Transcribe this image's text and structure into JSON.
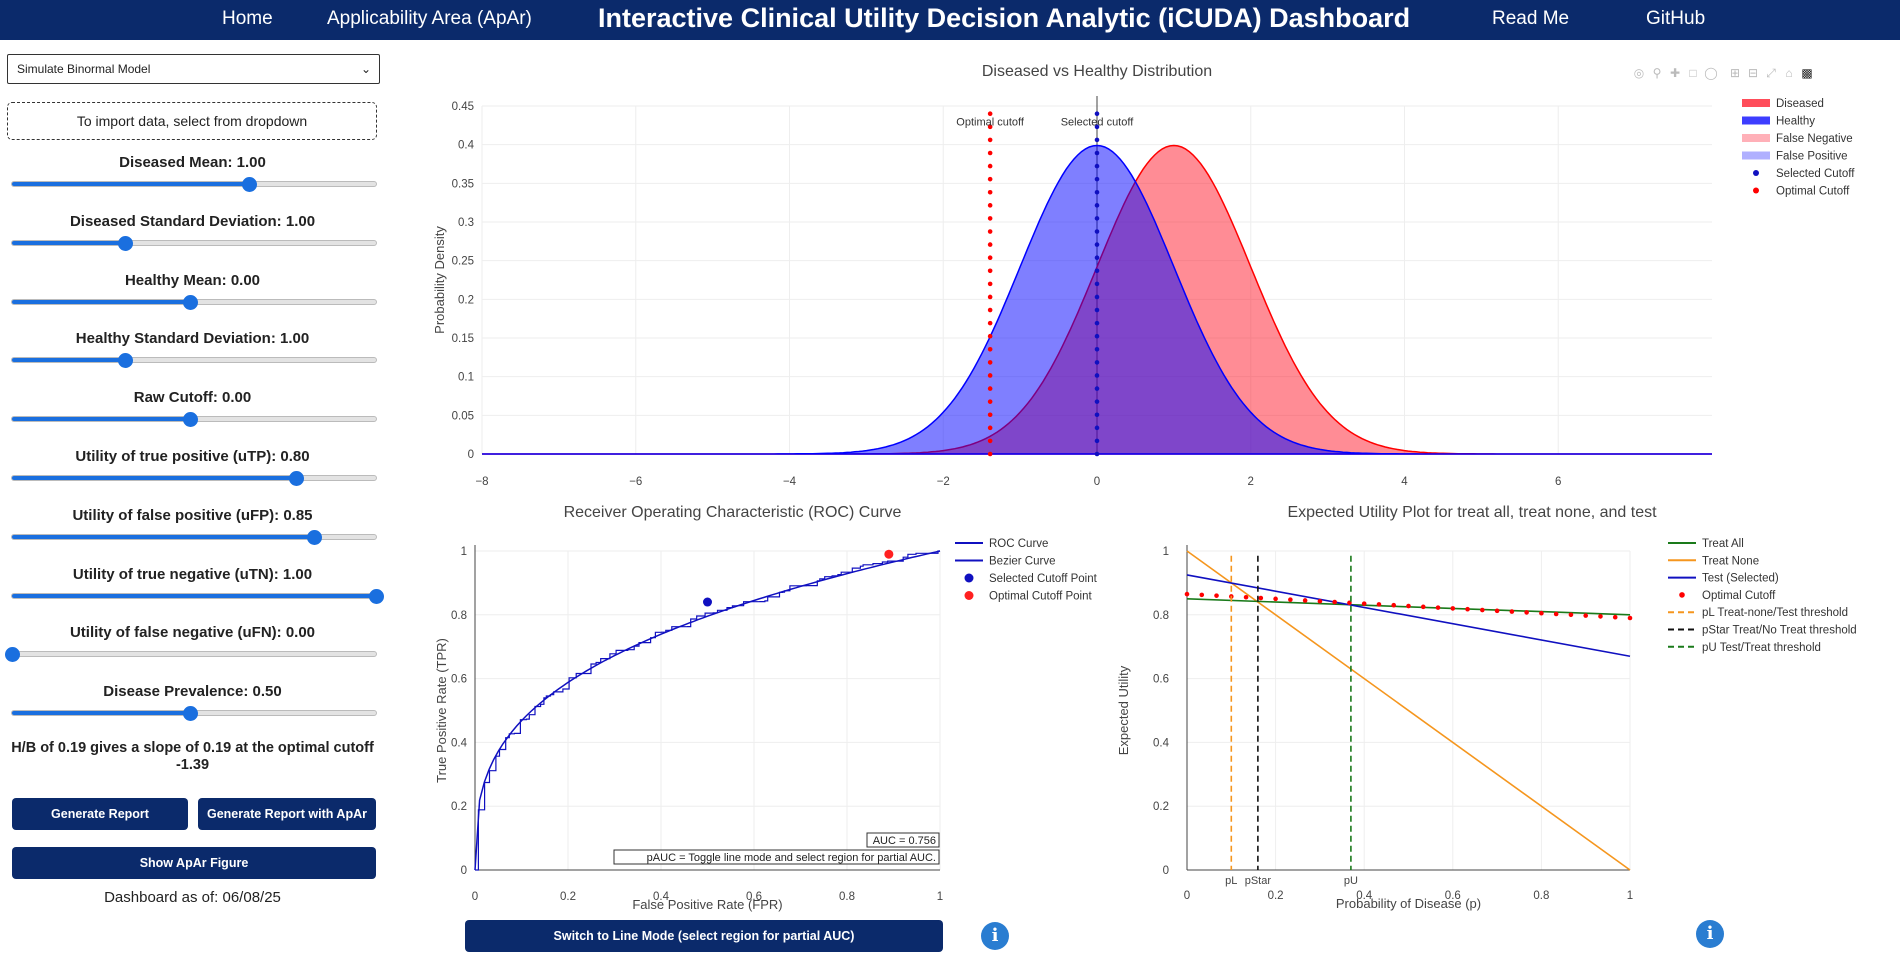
{
  "nav": {
    "home": "Home",
    "apar": "Applicability Area (ApAr)",
    "title": "Interactive Clinical Utility Decision Analytic (iCUDA) Dashboard",
    "readme": "Read Me",
    "github": "GitHub"
  },
  "sidebar": {
    "model_select": "Simulate Binormal Model",
    "import_text": "To import data, select from dropdown",
    "sliders": [
      {
        "label": "Diseased Mean: 1.00",
        "fraction": 0.65
      },
      {
        "label": "Diseased Standard Deviation: 1.00",
        "fraction": 0.31
      },
      {
        "label": "Healthy Mean: 0.00",
        "fraction": 0.49
      },
      {
        "label": "Healthy Standard Deviation: 1.00",
        "fraction": 0.31
      },
      {
        "label": "Raw Cutoff: 0.00",
        "fraction": 0.49
      },
      {
        "label": "Utility of true positive (uTP): 0.80",
        "fraction": 0.78
      },
      {
        "label": "Utility of false positive (uFP): 0.85",
        "fraction": 0.83
      },
      {
        "label": "Utility of true negative (uTN): 1.00",
        "fraction": 1.0
      },
      {
        "label": "Utility of false negative (uFN): 0.00",
        "fraction": 0.0
      },
      {
        "label": "Disease Prevalence: 0.50",
        "fraction": 0.49
      }
    ],
    "hb_line1": "H/B of 0.19 gives a slope of 0.19 at the optimal cutoff",
    "hb_line2": "-1.39",
    "btn_report": "Generate Report",
    "btn_report_apar": "Generate Report with ApAr",
    "btn_show_apar": "Show ApAr Figure",
    "as_of": "Dashboard as of: 06/08/25"
  },
  "colors": {
    "navy": "#0b2a6b",
    "diseased": "#ff0000",
    "healthy": "#0000ff",
    "slider": "#1a6fdf",
    "treat_all": "#1a7a1a",
    "treat_none": "#f5961e",
    "optimal": "#ff0000"
  },
  "icons": [
    "camera-icon",
    "zoom-icon",
    "pan-icon",
    "box-select-icon",
    "lasso-icon",
    "zoom-in-icon",
    "zoom-out-icon",
    "autoscale-icon",
    "home-icon",
    "plotly-logo-icon"
  ],
  "distribution_chart": {
    "type": "area",
    "title": "Diseased vs Healthy Distribution",
    "ylabel": "Probability Density",
    "xlim": [
      -8,
      8
    ],
    "ylim": [
      0,
      0.45
    ],
    "xticks": [
      "−8",
      "−6",
      "−4",
      "−2",
      "0",
      "2",
      "4",
      "6"
    ],
    "yticks": [
      "0",
      "0.05",
      "0.1",
      "0.15",
      "0.2",
      "0.25",
      "0.3",
      "0.35",
      "0.4",
      "0.45"
    ],
    "diseased": {
      "mean": 1.0,
      "sd": 1.0
    },
    "healthy": {
      "mean": 0.0,
      "sd": 1.0
    },
    "optimal_cutoff": -1.39,
    "selected_cutoff": 0.0,
    "optimal_label": "Optimal cutoff",
    "selected_label": "Selected cutoff",
    "legend": [
      "Diseased",
      "Healthy",
      "False Negative",
      "False Positive",
      "Selected Cutoff",
      "Optimal Cutoff"
    ]
  },
  "roc_chart": {
    "type": "line",
    "title": "Receiver Operating Characteristic (ROC) Curve",
    "xlabel": "False Positive Rate (FPR)",
    "ylabel": "True Positive Rate (TPR)",
    "xlim": [
      0,
      1
    ],
    "ylim": [
      0,
      1
    ],
    "xticks": [
      "0",
      "0.2",
      "0.4",
      "0.6",
      "0.8",
      "1"
    ],
    "yticks": [
      "0",
      "0.2",
      "0.4",
      "0.6",
      "0.8",
      "1"
    ],
    "selected_point": [
      0.5,
      0.84
    ],
    "optimal_point": [
      0.89,
      0.99
    ],
    "auc_text": "AUC = 0.756",
    "pauc_text": "pAUC = Toggle line mode and select region for partial AUC.",
    "legend": [
      "ROC Curve",
      "Bezier Curve",
      "Selected Cutoff Point",
      "Optimal Cutoff Point"
    ]
  },
  "utility_chart": {
    "type": "line",
    "title": "Expected Utility Plot for treat all, treat none, and test",
    "xlabel": "Probability of Disease (p)",
    "ylabel": "Expected Utility",
    "xlim": [
      0,
      1
    ],
    "ylim": [
      0,
      1
    ],
    "xticks": [
      "0",
      "0.2",
      "0.4",
      "0.6",
      "0.8",
      "1"
    ],
    "yticks": [
      "0",
      "0.2",
      "0.4",
      "0.6",
      "0.8",
      "1"
    ],
    "treat_all": [
      [
        0,
        0.85
      ],
      [
        1,
        0.8
      ]
    ],
    "treat_none": [
      [
        0,
        1.0
      ],
      [
        1,
        0.0
      ]
    ],
    "test": [
      [
        0,
        0.925
      ],
      [
        1,
        0.67
      ]
    ],
    "optimal": [
      [
        0,
        0.865
      ],
      [
        1,
        0.79
      ]
    ],
    "pL": 0.1,
    "pStar": 0.16,
    "pU": 0.37,
    "pL_label": "pL",
    "pStar_label": "pStar",
    "pU_label": "pU",
    "legend": [
      "Treat All",
      "Treat None",
      "Test (Selected)",
      "Optimal Cutoff",
      "pL Treat-none/Test threshold",
      "pStar Treat/No Treat threshold",
      "pU Test/Treat threshold"
    ]
  },
  "mode_button": "Switch to Line Mode (select region for partial AUC)",
  "info_label": "i"
}
